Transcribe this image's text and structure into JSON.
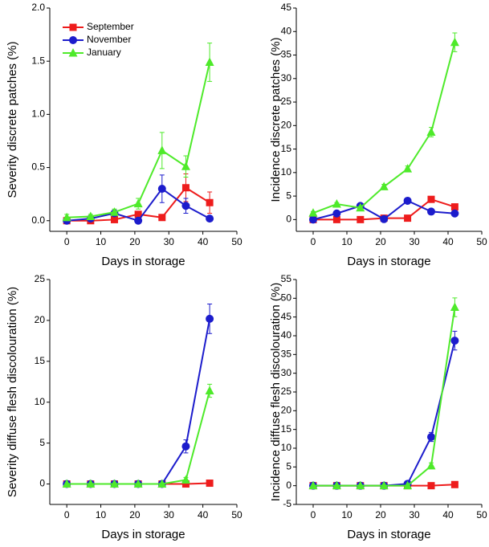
{
  "chart_data": [
    {
      "type": "line",
      "ylabel": "Severity discrete patches (%)",
      "xlabel": "Days in storage",
      "x": [
        0,
        7,
        14,
        21,
        28,
        35,
        42
      ],
      "xlim": [
        -5,
        50
      ],
      "xticks": [
        0,
        10,
        20,
        30,
        40,
        50
      ],
      "ylim": [
        -0.1,
        2.0
      ],
      "yticks": [
        {
          "value": 0,
          "label": "0.0"
        },
        {
          "value": 0.5,
          "label": "0.5"
        },
        {
          "value": 1,
          "label": "1.0"
        },
        {
          "value": 1.5,
          "label": "1.5"
        },
        {
          "value": 2,
          "label": "2.0"
        }
      ],
      "legend": "upper left",
      "series": [
        {
          "name": "September",
          "color": "#ee1c1c",
          "marker": "square",
          "values": [
            0,
            0,
            0.01,
            0.06,
            0.03,
            0.31,
            0.17
          ],
          "errors": [
            0,
            0,
            0,
            0.02,
            0,
            0.13,
            0.1
          ]
        },
        {
          "name": "November",
          "color": "#1c1ccc",
          "marker": "circle",
          "values": [
            0,
            0.02,
            0.07,
            0,
            0.3,
            0.14,
            0.02
          ],
          "errors": [
            0,
            0,
            0,
            0,
            0.13,
            0.07,
            0
          ]
        },
        {
          "name": "January",
          "color": "#4eea2a",
          "marker": "triangle",
          "values": [
            0.03,
            0.04,
            0.08,
            0.16,
            0.66,
            0.51,
            1.49
          ],
          "errors": [
            0.03,
            0.02,
            0.03,
            0.05,
            0.17,
            0.1,
            0.18
          ]
        }
      ]
    },
    {
      "type": "line",
      "ylabel": "Incidence discrete patches (%)",
      "xlabel": "Days in storage",
      "x": [
        0,
        7,
        14,
        21,
        28,
        35,
        42
      ],
      "xlim": [
        -5,
        50
      ],
      "xticks": [
        0,
        10,
        20,
        30,
        40,
        50
      ],
      "ylim": [
        -2.5,
        45
      ],
      "yticks": [
        0,
        5,
        10,
        15,
        20,
        25,
        30,
        35,
        40,
        45
      ],
      "series": [
        {
          "color": "#ee1c1c",
          "marker": "square",
          "values": [
            0,
            0,
            0,
            0.3,
            0.3,
            4.3,
            2.7
          ],
          "errors": [
            0,
            0,
            0,
            0,
            0,
            0.4,
            0.3
          ]
        },
        {
          "color": "#1c1ccc",
          "marker": "circle",
          "values": [
            0,
            1.3,
            2.9,
            0.1,
            4,
            1.7,
            1.3
          ],
          "errors": [
            0,
            0.3,
            0.3,
            0,
            0.4,
            0.3,
            0.3
          ]
        },
        {
          "color": "#4eea2a",
          "marker": "triangle",
          "values": [
            1.4,
            3.3,
            2.5,
            7,
            10.8,
            18.6,
            37.7
          ],
          "errors": [
            0.3,
            0.3,
            0.3,
            0.5,
            0.6,
            1,
            2
          ]
        }
      ]
    },
    {
      "type": "line",
      "ylabel": "Severity diffuse flesh discolouration (%)",
      "xlabel": "Days in storage",
      "x": [
        0,
        7,
        14,
        21,
        28,
        35,
        42
      ],
      "xlim": [
        -5,
        50
      ],
      "xticks": [
        0,
        10,
        20,
        30,
        40,
        50
      ],
      "ylim": [
        -2.5,
        25
      ],
      "yticks": [
        0,
        5,
        10,
        15,
        20,
        25
      ],
      "series": [
        {
          "color": "#ee1c1c",
          "marker": "square",
          "values": [
            0,
            0,
            0,
            0,
            0,
            0,
            0.1
          ],
          "errors": [
            0,
            0,
            0,
            0,
            0,
            0,
            0
          ]
        },
        {
          "color": "#1c1ccc",
          "marker": "circle",
          "values": [
            0,
            0,
            0,
            0,
            0,
            4.6,
            20.2
          ],
          "errors": [
            0,
            0,
            0,
            0,
            0,
            0.8,
            1.8
          ]
        },
        {
          "color": "#4eea2a",
          "marker": "triangle",
          "values": [
            0,
            0,
            0,
            0,
            0,
            0.5,
            11.4
          ],
          "errors": [
            0,
            0,
            0,
            0,
            0,
            0.3,
            0.8
          ]
        }
      ]
    },
    {
      "type": "line",
      "ylabel": "Incidence diffuse flesh discolouration (%)",
      "xlabel": "Days in storage",
      "x": [
        0,
        7,
        14,
        21,
        28,
        35,
        42
      ],
      "xlim": [
        -5,
        50
      ],
      "xticks": [
        0,
        10,
        20,
        30,
        40,
        50
      ],
      "ylim": [
        -5,
        55
      ],
      "yticks": [
        -5,
        0,
        5,
        10,
        15,
        20,
        25,
        30,
        35,
        40,
        45,
        50,
        55
      ],
      "series": [
        {
          "color": "#ee1c1c",
          "marker": "square",
          "values": [
            0,
            0,
            0,
            0,
            0,
            0,
            0.3
          ],
          "errors": [
            0,
            0,
            0,
            0,
            0,
            0,
            0
          ]
        },
        {
          "color": "#1c1ccc",
          "marker": "circle",
          "values": [
            0,
            0,
            0,
            0,
            0.5,
            13,
            38.7
          ],
          "errors": [
            0,
            0,
            0,
            0,
            0.3,
            1.2,
            2.5
          ]
        },
        {
          "color": "#4eea2a",
          "marker": "triangle",
          "values": [
            0,
            0,
            0,
            0,
            0,
            5.3,
            47.6
          ],
          "errors": [
            0,
            0,
            0,
            0,
            0,
            0.8,
            2.5
          ]
        }
      ]
    }
  ]
}
